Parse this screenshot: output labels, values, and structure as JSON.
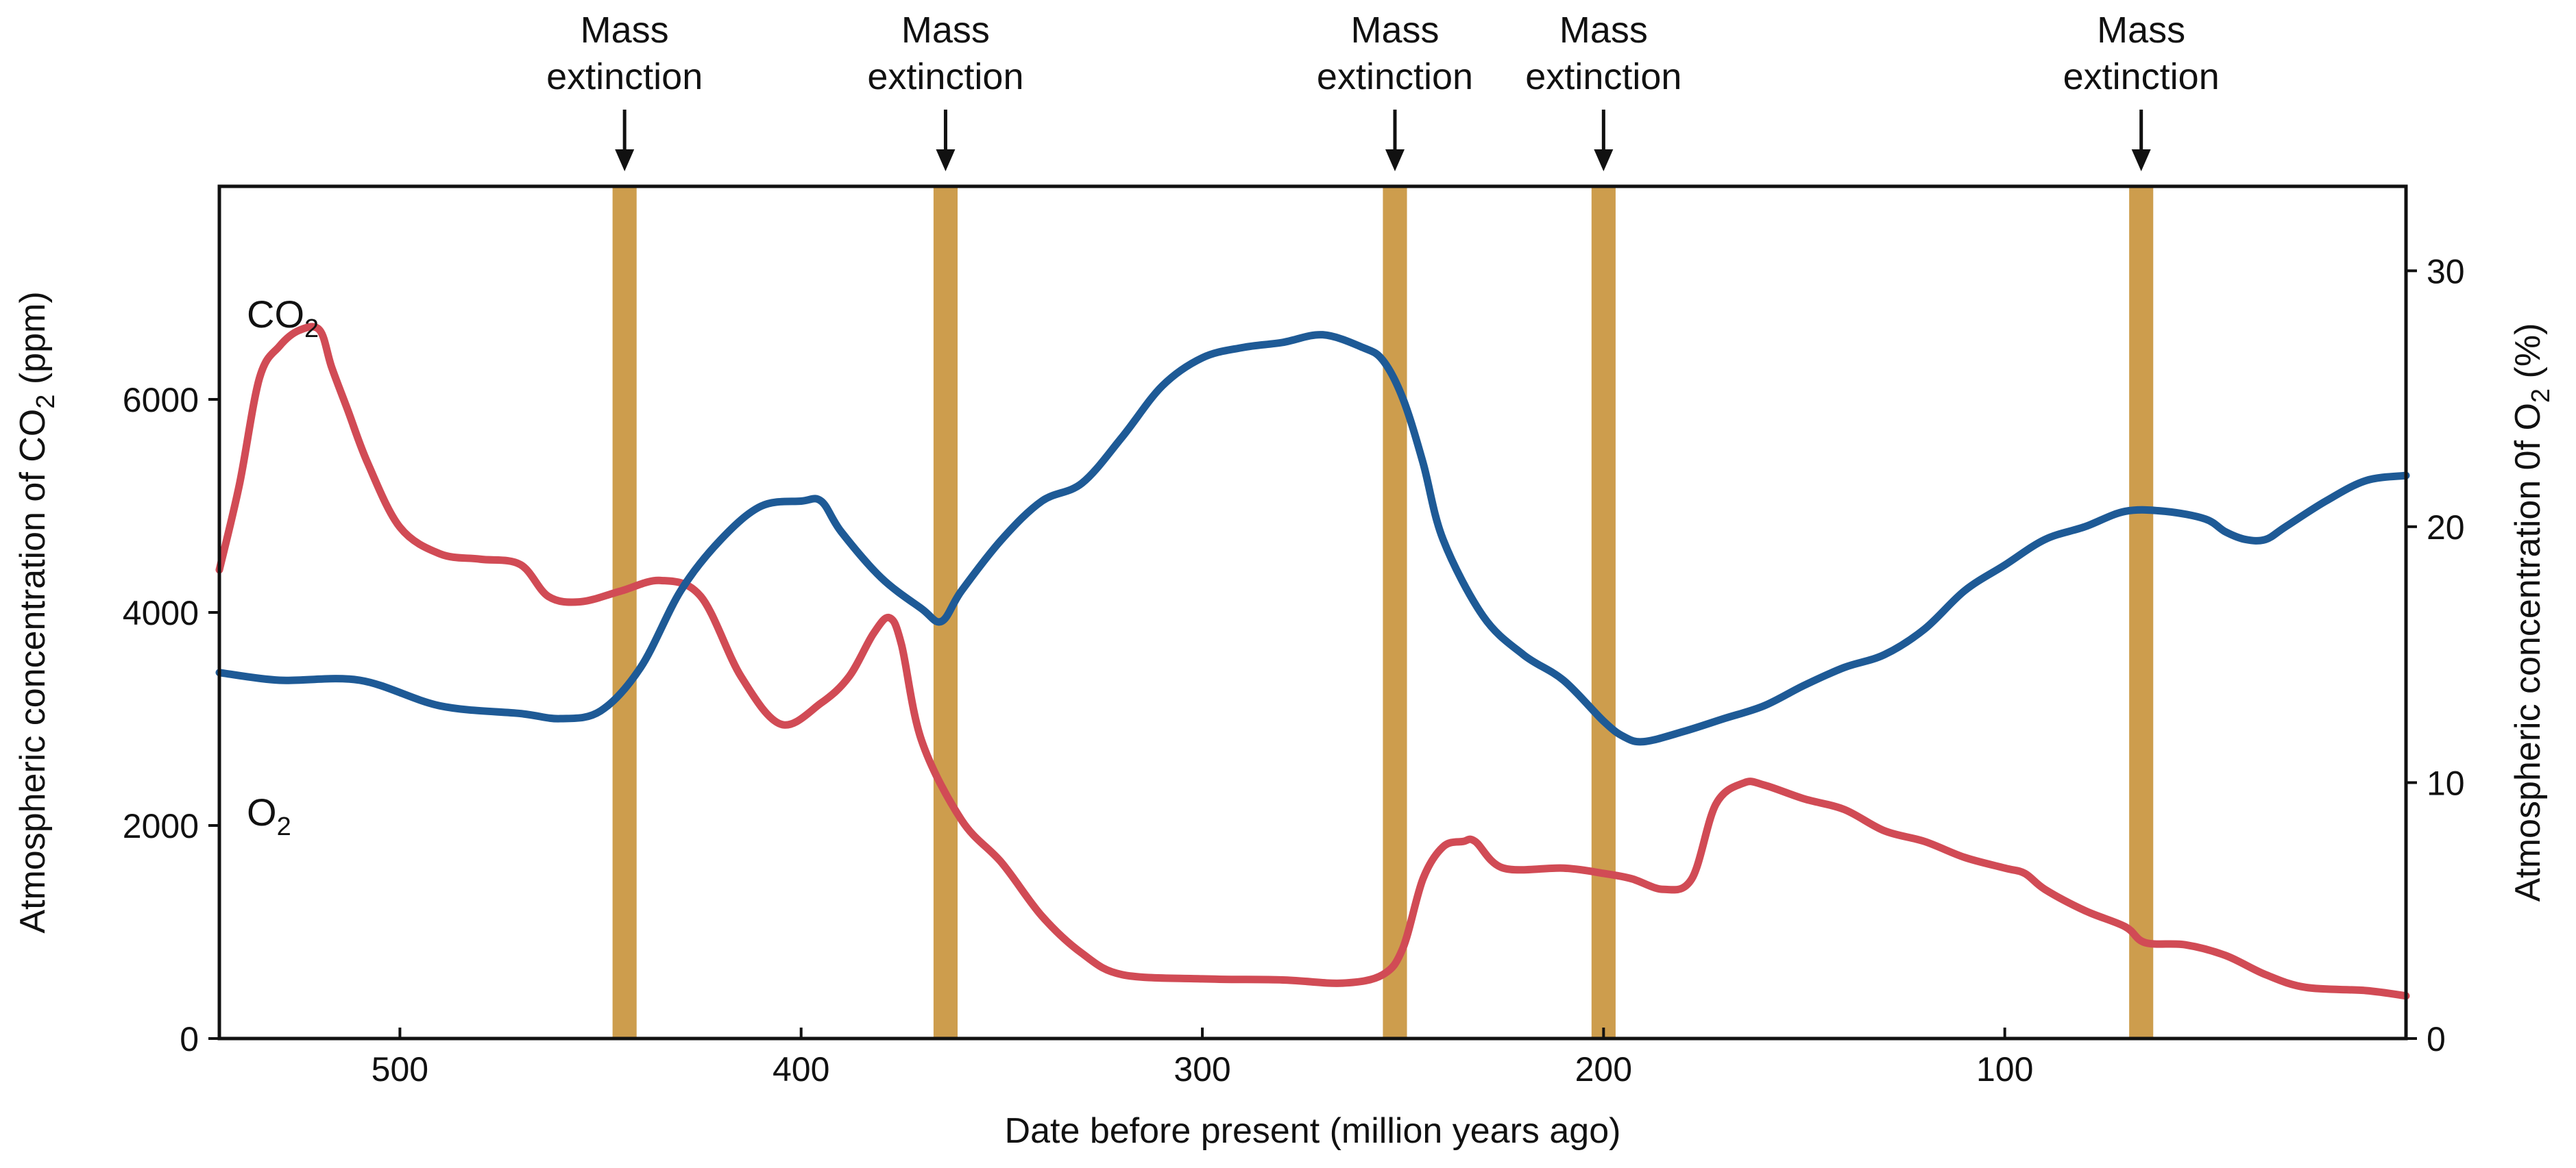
{
  "chart_data": {
    "type": "line",
    "title": "",
    "xlabel": "Date before present (million years ago)",
    "ylabel_left": {
      "prefix": "Atmospheric concentration of CO",
      "sub": "2",
      "suffix": " (ppm)"
    },
    "ylabel_right": {
      "prefix": "Atmospheric concentration 0f O",
      "sub": "2",
      "suffix": " (%)"
    },
    "xlim": [
      545,
      0
    ],
    "ylim_left": [
      0,
      8000
    ],
    "ylim_right": [
      0,
      33.3
    ],
    "x_ticks": [
      {
        "value": 500,
        "label": "500"
      },
      {
        "value": 400,
        "label": "400"
      },
      {
        "value": 300,
        "label": "300"
      },
      {
        "value": 200,
        "label": "200"
      },
      {
        "value": 100,
        "label": "100"
      }
    ],
    "y_left_ticks": [
      {
        "value": 0,
        "label": "0"
      },
      {
        "value": 2000,
        "label": "2000"
      },
      {
        "value": 4000,
        "label": "4000"
      },
      {
        "value": 6000,
        "label": "6000"
      }
    ],
    "y_right_ticks": [
      {
        "value": 0,
        "label": "0"
      },
      {
        "value": 10,
        "label": "10"
      },
      {
        "value": 20,
        "label": "20"
      },
      {
        "value": 30,
        "label": "30"
      }
    ],
    "series": [
      {
        "name": "CO2",
        "label": {
          "base": "CO",
          "sub": "2"
        },
        "axis": "left",
        "color": "#d14b55",
        "x": [
          545,
          540,
          535,
          530,
          525,
          520,
          517,
          513,
          508,
          500,
          490,
          480,
          470,
          463,
          455,
          445,
          435,
          425,
          415,
          405,
          395,
          388,
          382,
          378,
          375,
          370,
          360,
          350,
          340,
          330,
          320,
          300,
          280,
          265,
          255,
          250,
          245,
          240,
          235,
          232,
          225,
          210,
          200,
          193,
          185,
          178,
          172,
          165,
          160,
          150,
          140,
          130,
          120,
          110,
          100,
          95,
          90,
          80,
          70,
          65,
          55,
          45,
          35,
          25,
          10,
          0
        ],
        "values": [
          4400,
          5200,
          6200,
          6500,
          6650,
          6650,
          6300,
          5900,
          5400,
          4800,
          4550,
          4500,
          4450,
          4150,
          4100,
          4200,
          4300,
          4150,
          3400,
          2950,
          3150,
          3400,
          3800,
          3950,
          3700,
          2800,
          2050,
          1650,
          1150,
          800,
          600,
          560,
          550,
          520,
          600,
          850,
          1500,
          1800,
          1850,
          1850,
          1600,
          1600,
          1550,
          1500,
          1400,
          1500,
          2200,
          2400,
          2380,
          2250,
          2150,
          1950,
          1850,
          1700,
          1600,
          1550,
          1400,
          1200,
          1050,
          900,
          880,
          780,
          600,
          480,
          450,
          400
        ]
      },
      {
        "name": "O2",
        "label": {
          "base": "O",
          "sub": "2"
        },
        "axis": "right",
        "color": "#1e5a96",
        "x": [
          545,
          530,
          510,
          490,
          470,
          460,
          450,
          440,
          430,
          420,
          410,
          400,
          395,
          390,
          380,
          370,
          365,
          360,
          350,
          340,
          330,
          320,
          310,
          300,
          290,
          280,
          270,
          260,
          255,
          250,
          245,
          240,
          230,
          220,
          210,
          200,
          195,
          190,
          180,
          170,
          160,
          150,
          140,
          130,
          120,
          110,
          100,
          90,
          80,
          70,
          60,
          50,
          45,
          40,
          35,
          30,
          20,
          10,
          0
        ],
        "values": [
          14.3,
          14.0,
          14.0,
          13.0,
          12.7,
          12.5,
          12.8,
          14.5,
          17.5,
          19.5,
          20.8,
          21.0,
          21.0,
          19.8,
          18.0,
          16.8,
          16.3,
          17.5,
          19.5,
          21.0,
          21.7,
          23.5,
          25.5,
          26.6,
          27.0,
          27.2,
          27.5,
          27.0,
          26.5,
          25.0,
          22.5,
          19.5,
          16.5,
          15.0,
          14.0,
          12.4,
          11.8,
          11.6,
          12.0,
          12.5,
          13.0,
          13.8,
          14.5,
          15.0,
          16.0,
          17.5,
          18.5,
          19.5,
          20.0,
          20.6,
          20.6,
          20.3,
          19.8,
          19.5,
          19.5,
          20.0,
          21.0,
          21.8,
          22.0
        ]
      }
    ],
    "annotations": [
      {
        "x": 444,
        "line1": "Mass",
        "line2": "extinction",
        "band_width_my": 6
      },
      {
        "x": 364,
        "line1": "Mass",
        "line2": "extinction",
        "band_width_my": 6
      },
      {
        "x": 252,
        "line1": "Mass",
        "line2": "extinction",
        "band_width_my": 6
      },
      {
        "x": 200,
        "line1": "Mass",
        "line2": "extinction",
        "band_width_my": 6
      },
      {
        "x": 66,
        "line1": "Mass",
        "line2": "extinction",
        "band_width_my": 6
      }
    ],
    "band_color": "#c8923a",
    "grid": false,
    "legend": "inline labels"
  }
}
